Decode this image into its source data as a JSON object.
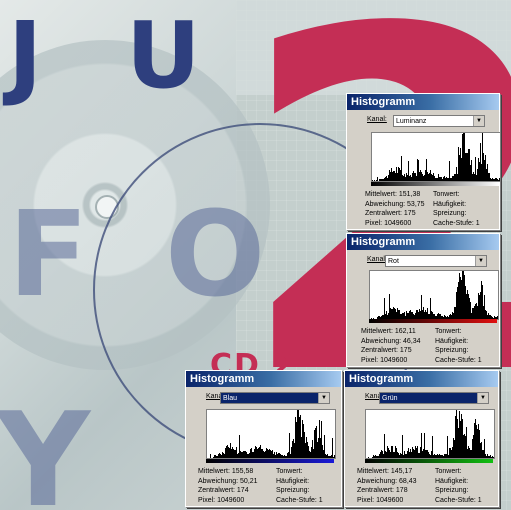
{
  "background": {
    "letters_left": [
      "J",
      "U",
      "F",
      "O",
      "Y"
    ],
    "cd_label": "CD 2",
    "big_number": "2",
    "colors": {
      "navy": "#2e3f7e",
      "crimson": "#c42e55"
    }
  },
  "palettes": [
    {
      "id": "luminanz",
      "title": "Histogramm",
      "kanal_label": "Kanal:",
      "kanal_value": "Luminanz",
      "bar_color": "#ffffff",
      "left": [
        {
          "label": "Mittelwert:",
          "value": "151,38"
        },
        {
          "label": "Abweichung:",
          "value": "53,75"
        },
        {
          "label": "Zentralwert:",
          "value": "175"
        },
        {
          "label": "Pixel:",
          "value": "1049600"
        }
      ],
      "right": [
        {
          "label": "Tonwert:",
          "value": ""
        },
        {
          "label": "Häufigkeit:",
          "value": ""
        },
        {
          "label": "Spreizung:",
          "value": ""
        },
        {
          "label": "Cache-Stufe:",
          "value": "1"
        }
      ]
    },
    {
      "id": "rot",
      "title": "Histogramm",
      "kanal_label": "Kanal:",
      "kanal_value": "Rot",
      "bar_color": "#e01010",
      "left": [
        {
          "label": "Mittelwert:",
          "value": "162,11"
        },
        {
          "label": "Abweichung:",
          "value": "46,34"
        },
        {
          "label": "Zentralwert:",
          "value": "175"
        },
        {
          "label": "Pixel:",
          "value": "1049600"
        }
      ],
      "right": [
        {
          "label": "Tonwert:",
          "value": ""
        },
        {
          "label": "Häufigkeit:",
          "value": ""
        },
        {
          "label": "Spreizung:",
          "value": ""
        },
        {
          "label": "Cache-Stufe:",
          "value": "1"
        }
      ]
    },
    {
      "id": "blau",
      "title": "Histogramm",
      "kanal_label": "Kanal:",
      "kanal_value": "Blau",
      "bar_color": "#1a1ad8",
      "left": [
        {
          "label": "Mittelwert:",
          "value": "155,58"
        },
        {
          "label": "Abweichung:",
          "value": "50,21"
        },
        {
          "label": "Zentralwert:",
          "value": "174"
        },
        {
          "label": "Pixel:",
          "value": "1049600"
        }
      ],
      "right": [
        {
          "label": "Tonwert:",
          "value": ""
        },
        {
          "label": "Häufigkeit:",
          "value": ""
        },
        {
          "label": "Spreizung:",
          "value": ""
        },
        {
          "label": "Cache-Stufe:",
          "value": "1"
        }
      ]
    },
    {
      "id": "gruen",
      "title": "Histogramm",
      "kanal_label": "Kanal:",
      "kanal_value": "Grün",
      "bar_color": "#12c012",
      "left": [
        {
          "label": "Mittelwert:",
          "value": "145,17"
        },
        {
          "label": "Abweichung:",
          "value": "68,43"
        },
        {
          "label": "Zentralwert:",
          "value": "178"
        },
        {
          "label": "Pixel:",
          "value": "1049600"
        }
      ],
      "right": [
        {
          "label": "Tonwert:",
          "value": ""
        },
        {
          "label": "Häufigkeit:",
          "value": ""
        },
        {
          "label": "Spreizung:",
          "value": ""
        },
        {
          "label": "Cache-Stufe:",
          "value": "1"
        }
      ]
    }
  ]
}
